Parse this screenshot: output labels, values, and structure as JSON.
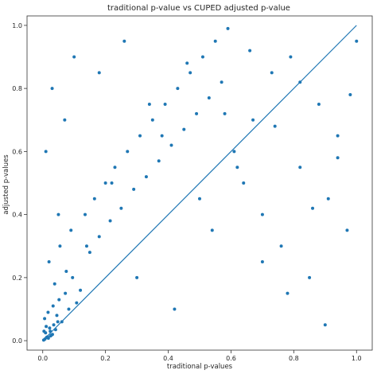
{
  "chart_data": {
    "type": "scatter",
    "title": "traditional p-value vs CUPED adjusted p-value",
    "xlabel": "traditional p-values",
    "ylabel": "adjusted p-values",
    "xlim": [
      -0.05,
      1.05
    ],
    "ylim": [
      -0.03,
      1.03
    ],
    "xticks": [
      "0.0",
      "0.2",
      "0.4",
      "0.6",
      "0.8",
      "1.0"
    ],
    "yticks": [
      "0.0",
      "0.2",
      "0.4",
      "0.6",
      "0.8",
      "1.0"
    ],
    "grid": false,
    "legend": "none",
    "point_color": "#1f77b4",
    "line_color": "#1f77b4",
    "reference_line": {
      "x": [
        0,
        1
      ],
      "y": [
        0,
        1
      ]
    },
    "series": [
      {
        "x": [
          0.003,
          0.007,
          0.012,
          0.018,
          0.025,
          0.031,
          0.004,
          0.009,
          0.015,
          0.022,
          0.028,
          0.035,
          0.041,
          0.048,
          0.006,
          0.011,
          0.017,
          0.024,
          0.033,
          0.045,
          0.052,
          0.061,
          0.072,
          0.083,
          0.095,
          0.108,
          0.02,
          0.038,
          0.055,
          0.075,
          0.09,
          0.12,
          0.135,
          0.15,
          0.165,
          0.18,
          0.2,
          0.215,
          0.23,
          0.25,
          0.27,
          0.29,
          0.31,
          0.33,
          0.35,
          0.37,
          0.39,
          0.41,
          0.43,
          0.45,
          0.47,
          0.49,
          0.51,
          0.53,
          0.55,
          0.57,
          0.59,
          0.61,
          0.64,
          0.67,
          0.7,
          0.73,
          0.76,
          0.79,
          0.82,
          0.85,
          0.88,
          0.91,
          0.94,
          0.97,
          1.0,
          0.01,
          0.03,
          0.05,
          0.07,
          0.1,
          0.14,
          0.18,
          0.22,
          0.26,
          0.3,
          0.34,
          0.38,
          0.42,
          0.46,
          0.5,
          0.54,
          0.58,
          0.62,
          0.66,
          0.7,
          0.74,
          0.78,
          0.82,
          0.86,
          0.9,
          0.94,
          0.98
        ],
        "y": [
          0.002,
          0.005,
          0.01,
          0.008,
          0.015,
          0.02,
          0.03,
          0.025,
          0.012,
          0.04,
          0.018,
          0.05,
          0.035,
          0.06,
          0.07,
          0.045,
          0.09,
          0.03,
          0.11,
          0.08,
          0.13,
          0.06,
          0.15,
          0.1,
          0.2,
          0.12,
          0.25,
          0.18,
          0.3,
          0.22,
          0.35,
          0.16,
          0.4,
          0.28,
          0.45,
          0.33,
          0.5,
          0.38,
          0.55,
          0.42,
          0.6,
          0.48,
          0.65,
          0.52,
          0.7,
          0.57,
          0.75,
          0.62,
          0.8,
          0.67,
          0.85,
          0.72,
          0.9,
          0.77,
          0.95,
          0.82,
          0.99,
          0.6,
          0.5,
          0.7,
          0.4,
          0.85,
          0.3,
          0.9,
          0.55,
          0.2,
          0.75,
          0.45,
          0.65,
          0.35,
          0.95,
          0.6,
          0.8,
          0.4,
          0.7,
          0.9,
          0.3,
          0.85,
          0.5,
          0.95,
          0.2,
          0.75,
          0.65,
          0.1,
          0.88,
          0.45,
          0.35,
          0.72,
          0.55,
          0.92,
          0.25,
          0.68,
          0.15,
          0.82,
          0.42,
          0.05,
          0.58,
          0.78
        ]
      }
    ]
  }
}
